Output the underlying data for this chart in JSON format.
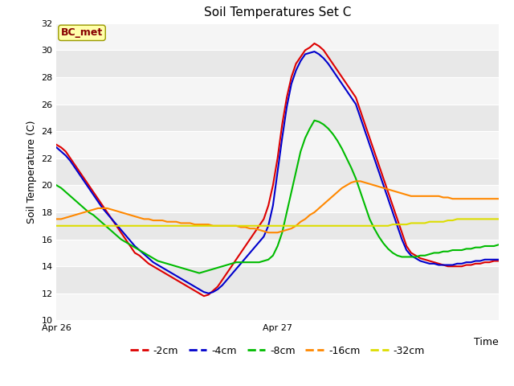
{
  "title": "Soil Temperatures Set C",
  "ylabel": "Soil Temperature (C)",
  "xlabel_right": "Time",
  "ylim": [
    10,
    32
  ],
  "yticks": [
    10,
    12,
    14,
    16,
    18,
    20,
    22,
    24,
    26,
    28,
    30,
    32
  ],
  "xtick_positions": [
    0,
    48
  ],
  "xtick_labels": [
    "Apr 26",
    "Apr 27"
  ],
  "annotation": "BC_met",
  "fig_facecolor": "#ffffff",
  "plot_facecolor": "#e8e8e8",
  "series_order": [
    "-2cm",
    "-4cm",
    "-8cm",
    "-16cm",
    "-32cm"
  ],
  "series": {
    "-2cm": {
      "color": "#dd0000",
      "lw": 1.5
    },
    "-4cm": {
      "color": "#0000cc",
      "lw": 1.5
    },
    "-8cm": {
      "color": "#00bb00",
      "lw": 1.5
    },
    "-16cm": {
      "color": "#ff8800",
      "lw": 1.5
    },
    "-32cm": {
      "color": "#dddd00",
      "lw": 1.5
    }
  },
  "n_points": 97,
  "data": {
    "-2cm": [
      23.0,
      22.8,
      22.5,
      22.0,
      21.5,
      21.0,
      20.5,
      20.0,
      19.5,
      19.0,
      18.5,
      18.0,
      17.5,
      17.0,
      16.5,
      16.0,
      15.5,
      15.0,
      14.8,
      14.5,
      14.2,
      14.0,
      13.8,
      13.6,
      13.4,
      13.2,
      13.0,
      12.8,
      12.6,
      12.4,
      12.2,
      12.0,
      11.8,
      11.9,
      12.2,
      12.5,
      13.0,
      13.5,
      14.0,
      14.5,
      15.0,
      15.5,
      16.0,
      16.5,
      17.0,
      17.5,
      18.5,
      20.0,
      22.0,
      24.5,
      26.5,
      28.0,
      29.0,
      29.5,
      30.0,
      30.2,
      30.5,
      30.3,
      30.0,
      29.5,
      29.0,
      28.5,
      28.0,
      27.5,
      27.0,
      26.5,
      25.5,
      24.5,
      23.5,
      22.5,
      21.5,
      20.5,
      19.5,
      18.5,
      17.5,
      16.5,
      15.5,
      15.0,
      14.8,
      14.6,
      14.5,
      14.4,
      14.3,
      14.2,
      14.1,
      14.0,
      14.0,
      14.0,
      14.0,
      14.1,
      14.1,
      14.2,
      14.2,
      14.3,
      14.3,
      14.4,
      14.4
    ],
    "-4cm": [
      22.8,
      22.5,
      22.2,
      21.8,
      21.3,
      20.8,
      20.3,
      19.8,
      19.3,
      18.8,
      18.3,
      17.9,
      17.5,
      17.1,
      16.7,
      16.3,
      15.9,
      15.5,
      15.2,
      14.9,
      14.6,
      14.3,
      14.1,
      13.9,
      13.7,
      13.5,
      13.3,
      13.1,
      12.9,
      12.7,
      12.5,
      12.3,
      12.1,
      12.0,
      12.1,
      12.3,
      12.6,
      13.0,
      13.4,
      13.8,
      14.2,
      14.6,
      15.0,
      15.4,
      15.8,
      16.2,
      17.0,
      18.5,
      21.0,
      23.5,
      25.8,
      27.5,
      28.5,
      29.2,
      29.7,
      29.8,
      29.9,
      29.7,
      29.4,
      29.0,
      28.5,
      28.0,
      27.5,
      27.0,
      26.5,
      26.0,
      25.0,
      24.0,
      23.0,
      22.0,
      21.0,
      20.0,
      19.0,
      18.0,
      17.0,
      16.0,
      15.2,
      14.8,
      14.6,
      14.4,
      14.3,
      14.2,
      14.2,
      14.1,
      14.1,
      14.1,
      14.1,
      14.2,
      14.2,
      14.3,
      14.3,
      14.4,
      14.4,
      14.5,
      14.5,
      14.5,
      14.5
    ],
    "-8cm": [
      20.0,
      19.8,
      19.5,
      19.2,
      18.9,
      18.6,
      18.3,
      18.0,
      17.8,
      17.5,
      17.2,
      16.9,
      16.6,
      16.3,
      16.0,
      15.8,
      15.6,
      15.4,
      15.2,
      15.0,
      14.8,
      14.6,
      14.4,
      14.3,
      14.2,
      14.1,
      14.0,
      13.9,
      13.8,
      13.7,
      13.6,
      13.5,
      13.6,
      13.7,
      13.8,
      13.9,
      14.0,
      14.1,
      14.2,
      14.3,
      14.3,
      14.3,
      14.3,
      14.3,
      14.3,
      14.4,
      14.5,
      14.8,
      15.5,
      16.5,
      18.0,
      19.5,
      21.0,
      22.5,
      23.5,
      24.2,
      24.8,
      24.7,
      24.5,
      24.2,
      23.8,
      23.3,
      22.7,
      22.0,
      21.3,
      20.5,
      19.5,
      18.5,
      17.5,
      16.8,
      16.2,
      15.7,
      15.3,
      15.0,
      14.8,
      14.7,
      14.7,
      14.7,
      14.7,
      14.8,
      14.8,
      14.9,
      15.0,
      15.0,
      15.1,
      15.1,
      15.2,
      15.2,
      15.2,
      15.3,
      15.3,
      15.4,
      15.4,
      15.5,
      15.5,
      15.5,
      15.6
    ],
    "-16cm": [
      17.5,
      17.5,
      17.6,
      17.7,
      17.8,
      17.9,
      18.0,
      18.1,
      18.2,
      18.3,
      18.3,
      18.3,
      18.2,
      18.1,
      18.0,
      17.9,
      17.8,
      17.7,
      17.6,
      17.5,
      17.5,
      17.4,
      17.4,
      17.4,
      17.3,
      17.3,
      17.3,
      17.2,
      17.2,
      17.2,
      17.1,
      17.1,
      17.1,
      17.1,
      17.0,
      17.0,
      17.0,
      17.0,
      17.0,
      17.0,
      16.9,
      16.9,
      16.8,
      16.8,
      16.7,
      16.6,
      16.5,
      16.5,
      16.5,
      16.6,
      16.7,
      16.8,
      17.0,
      17.3,
      17.5,
      17.8,
      18.0,
      18.3,
      18.6,
      18.9,
      19.2,
      19.5,
      19.8,
      20.0,
      20.2,
      20.3,
      20.3,
      20.2,
      20.1,
      20.0,
      19.9,
      19.8,
      19.7,
      19.6,
      19.5,
      19.4,
      19.3,
      19.2,
      19.2,
      19.2,
      19.2,
      19.2,
      19.2,
      19.2,
      19.1,
      19.1,
      19.0,
      19.0,
      19.0,
      19.0,
      19.0,
      19.0,
      19.0,
      19.0,
      19.0,
      19.0,
      19.0
    ],
    "-32cm": [
      17.0,
      17.0,
      17.0,
      17.0,
      17.0,
      17.0,
      17.0,
      17.0,
      17.0,
      17.0,
      17.0,
      17.0,
      17.0,
      17.0,
      17.0,
      17.0,
      17.0,
      17.0,
      17.0,
      17.0,
      17.0,
      17.0,
      17.0,
      17.0,
      17.0,
      17.0,
      17.0,
      17.0,
      17.0,
      17.0,
      17.0,
      17.0,
      17.0,
      17.0,
      17.0,
      17.0,
      17.0,
      17.0,
      17.0,
      17.0,
      17.0,
      17.0,
      17.0,
      17.0,
      17.0,
      17.0,
      17.0,
      17.0,
      17.0,
      17.0,
      17.0,
      17.0,
      17.0,
      17.0,
      17.0,
      17.0,
      17.0,
      17.0,
      17.0,
      17.0,
      17.0,
      17.0,
      17.0,
      17.0,
      17.0,
      17.0,
      17.0,
      17.0,
      17.0,
      17.0,
      17.0,
      17.0,
      17.0,
      17.1,
      17.1,
      17.1,
      17.1,
      17.2,
      17.2,
      17.2,
      17.2,
      17.3,
      17.3,
      17.3,
      17.3,
      17.4,
      17.4,
      17.5,
      17.5,
      17.5,
      17.5,
      17.5,
      17.5,
      17.5,
      17.5,
      17.5,
      17.5
    ]
  }
}
